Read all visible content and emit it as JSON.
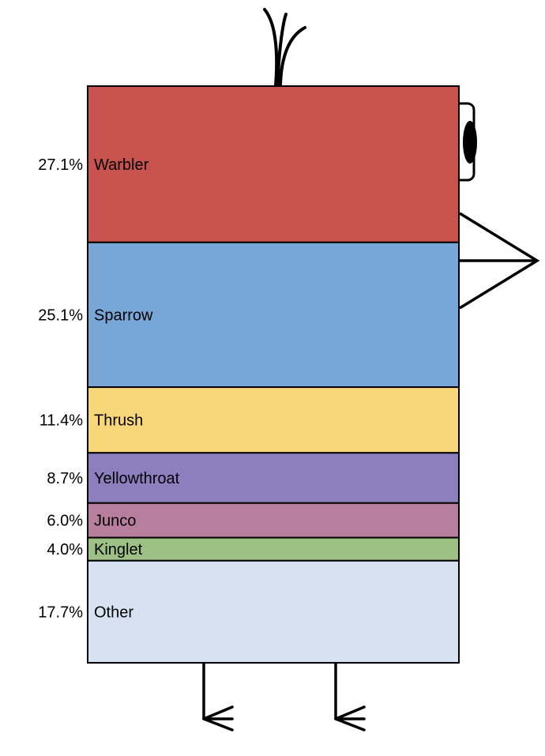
{
  "chart_data": {
    "type": "stacked-bar",
    "orientation": "vertical-single-column",
    "decoration": "bird",
    "categories": [
      "Warbler",
      "Sparrow",
      "Thrush",
      "Yellowthroat",
      "Junco",
      "Kinglet",
      "Other"
    ],
    "values": [
      27.1,
      25.1,
      11.4,
      8.7,
      6.0,
      4.0,
      17.7
    ],
    "value_labels": [
      "27.1%",
      "25.1%",
      "11.4%",
      "8.7%",
      "6.0%",
      "4.0%",
      "17.7%"
    ],
    "unit": "%",
    "colors": [
      "#c8524e",
      "#78a6d7",
      "#f7d77a",
      "#8b7fbe",
      "#b87e9e",
      "#9dc184",
      "#d6e2f1"
    ],
    "total": 100,
    "title": "",
    "xlabel": "",
    "ylabel": "",
    "grid": false,
    "legend": "none"
  }
}
